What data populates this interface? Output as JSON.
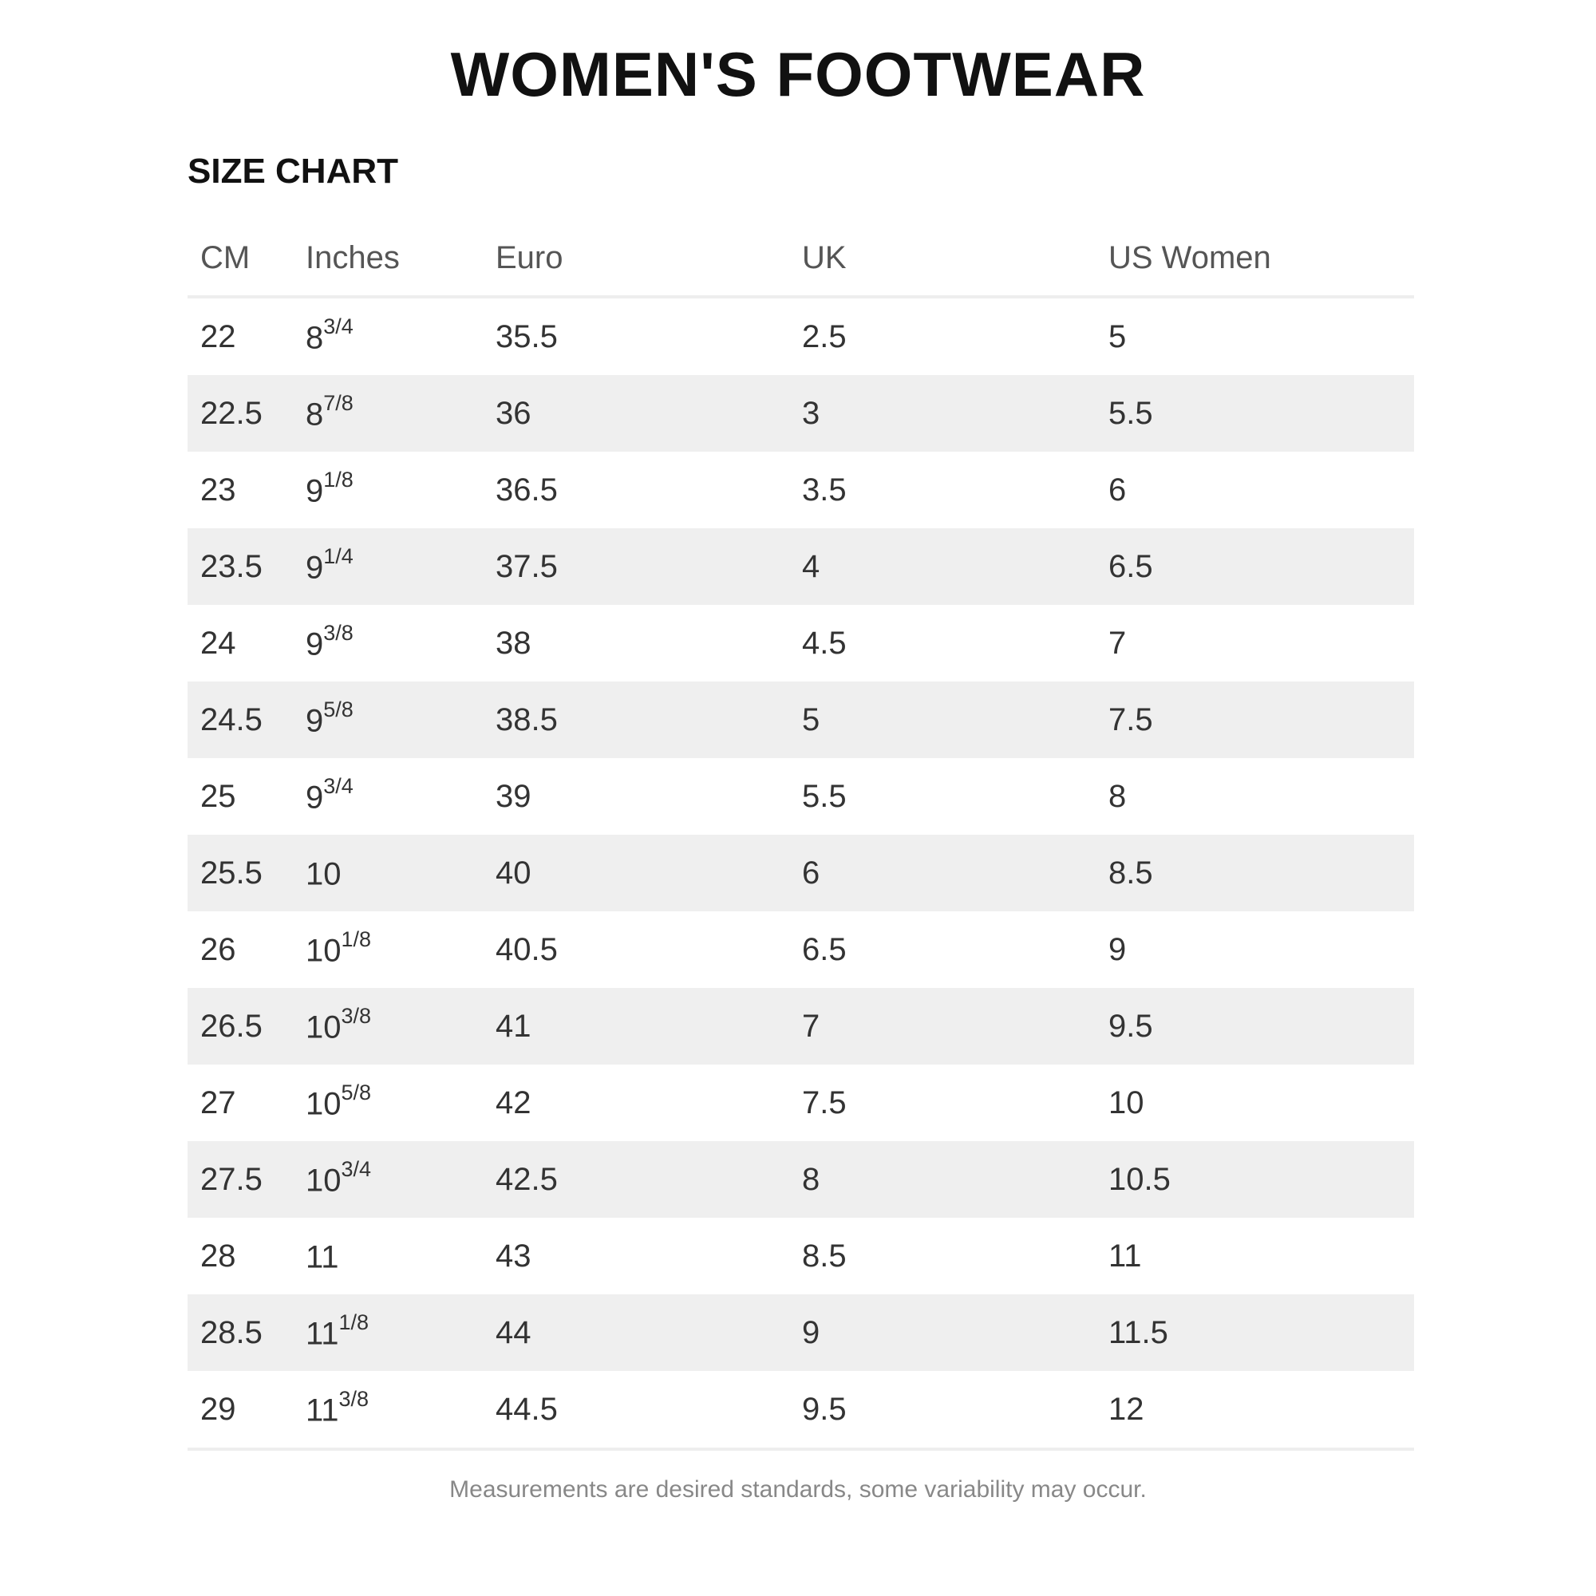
{
  "title": "WOMEN'S FOOTWEAR",
  "subtitle": "SIZE CHART",
  "columns": [
    "CM",
    "Inches",
    "Euro",
    "UK",
    "US Women"
  ],
  "rows": [
    {
      "cm": "22",
      "in_whole": "8",
      "in_frac": "3/4",
      "euro": "35.5",
      "uk": "2.5",
      "us": "5"
    },
    {
      "cm": "22.5",
      "in_whole": "8",
      "in_frac": "7/8",
      "euro": "36",
      "uk": "3",
      "us": "5.5"
    },
    {
      "cm": "23",
      "in_whole": "9",
      "in_frac": "1/8",
      "euro": "36.5",
      "uk": "3.5",
      "us": "6"
    },
    {
      "cm": "23.5",
      "in_whole": "9",
      "in_frac": "1/4",
      "euro": "37.5",
      "uk": "4",
      "us": "6.5"
    },
    {
      "cm": "24",
      "in_whole": "9",
      "in_frac": "3/8",
      "euro": "38",
      "uk": "4.5",
      "us": "7"
    },
    {
      "cm": "24.5",
      "in_whole": "9",
      "in_frac": "5/8",
      "euro": "38.5",
      "uk": "5",
      "us": "7.5"
    },
    {
      "cm": "25",
      "in_whole": "9",
      "in_frac": "3/4",
      "euro": "39",
      "uk": "5.5",
      "us": "8"
    },
    {
      "cm": "25.5",
      "in_whole": "10",
      "in_frac": "",
      "euro": "40",
      "uk": "6",
      "us": "8.5"
    },
    {
      "cm": "26",
      "in_whole": "10",
      "in_frac": "1/8",
      "euro": "40.5",
      "uk": "6.5",
      "us": "9"
    },
    {
      "cm": "26.5",
      "in_whole": "10",
      "in_frac": "3/8",
      "euro": "41",
      "uk": "7",
      "us": "9.5"
    },
    {
      "cm": "27",
      "in_whole": "10",
      "in_frac": "5/8",
      "euro": "42",
      "uk": "7.5",
      "us": "10"
    },
    {
      "cm": "27.5",
      "in_whole": "10",
      "in_frac": "3/4",
      "euro": "42.5",
      "uk": "8",
      "us": "10.5"
    },
    {
      "cm": "28",
      "in_whole": "11",
      "in_frac": "",
      "euro": "43",
      "uk": "8.5",
      "us": "11"
    },
    {
      "cm": "28.5",
      "in_whole": "11",
      "in_frac": "1/8",
      "euro": "44",
      "uk": "9",
      "us": "11.5"
    },
    {
      "cm": "29",
      "in_whole": "11",
      "in_frac": "3/8",
      "euro": "44.5",
      "uk": "9.5",
      "us": "12"
    }
  ],
  "note": "Measurements are desired standards, some variability may occur.",
  "colors": {
    "stripe": "#efefef",
    "divider": "#eeeeee",
    "text": "#333333"
  }
}
